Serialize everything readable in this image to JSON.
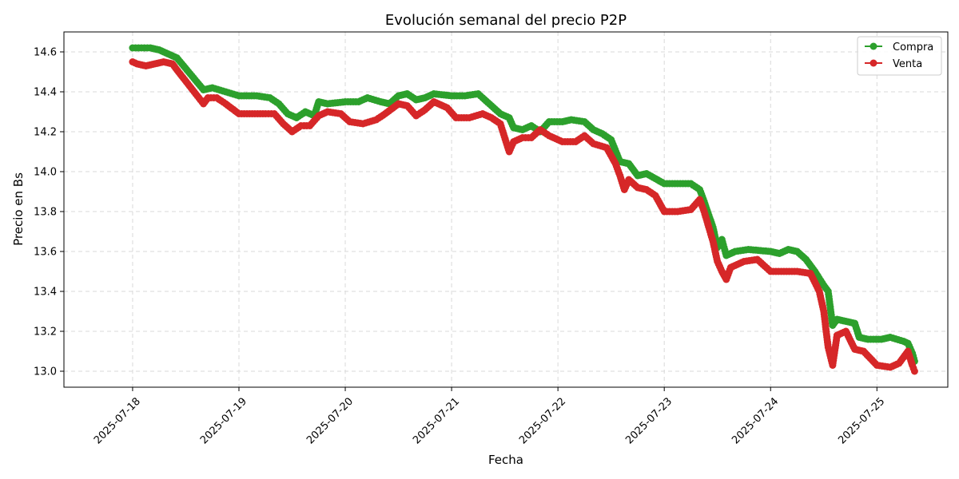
{
  "chart_data": {
    "type": "line",
    "title": "Evolución semanal del precio P2P",
    "xlabel": "Fecha",
    "ylabel": "Precio en Bs",
    "x_ticks": [
      "2025-07-18",
      "2025-07-19",
      "2025-07-20",
      "2025-07-21",
      "2025-07-22",
      "2025-07-23",
      "2025-07-24",
      "2025-07-25"
    ],
    "y_ticks": [
      "13.0",
      "13.2",
      "13.4",
      "13.6",
      "13.8",
      "14.0",
      "14.2",
      "14.4",
      "14.6"
    ],
    "xlim": [
      "2025-07-17T08:30",
      "2025-07-25T16:00"
    ],
    "ylim": [
      12.92,
      14.7
    ],
    "grid": true,
    "legend_position": "top-right",
    "colors": {
      "Compra": "#2ca02c",
      "Venta": "#d62728"
    },
    "series": [
      {
        "name": "Compra",
        "points": [
          [
            "2025-07-18T00:00",
            14.62
          ],
          [
            "2025-07-18T02:00",
            14.62
          ],
          [
            "2025-07-18T04:00",
            14.62
          ],
          [
            "2025-07-18T06:00",
            14.61
          ],
          [
            "2025-07-18T08:00",
            14.59
          ],
          [
            "2025-07-18T10:00",
            14.57
          ],
          [
            "2025-07-18T16:00",
            14.41
          ],
          [
            "2025-07-18T18:00",
            14.42
          ],
          [
            "2025-07-18T21:00",
            14.4
          ],
          [
            "2025-07-19T00:00",
            14.38
          ],
          [
            "2025-07-19T04:00",
            14.38
          ],
          [
            "2025-07-19T07:00",
            14.37
          ],
          [
            "2025-07-19T09:00",
            14.34
          ],
          [
            "2025-07-19T11:00",
            14.29
          ],
          [
            "2025-07-19T13:00",
            14.27
          ],
          [
            "2025-07-19T15:00",
            14.3
          ],
          [
            "2025-07-19T17:00",
            14.28
          ],
          [
            "2025-07-19T18:00",
            14.35
          ],
          [
            "2025-07-19T20:00",
            14.34
          ],
          [
            "2025-07-20T00:00",
            14.35
          ],
          [
            "2025-07-20T03:00",
            14.35
          ],
          [
            "2025-07-20T05:00",
            14.37
          ],
          [
            "2025-07-20T08:00",
            14.35
          ],
          [
            "2025-07-20T10:00",
            14.34
          ],
          [
            "2025-07-20T12:00",
            14.38
          ],
          [
            "2025-07-20T14:00",
            14.39
          ],
          [
            "2025-07-20T16:00",
            14.36
          ],
          [
            "2025-07-20T18:00",
            14.37
          ],
          [
            "2025-07-20T20:00",
            14.39
          ],
          [
            "2025-07-21T00:00",
            14.38
          ],
          [
            "2025-07-21T03:00",
            14.38
          ],
          [
            "2025-07-21T06:00",
            14.39
          ],
          [
            "2025-07-21T07:00",
            14.37
          ],
          [
            "2025-07-21T09:00",
            14.33
          ],
          [
            "2025-07-21T11:00",
            14.29
          ],
          [
            "2025-07-21T13:00",
            14.27
          ],
          [
            "2025-07-21T14:00",
            14.22
          ],
          [
            "2025-07-21T16:00",
            14.21
          ],
          [
            "2025-07-21T18:00",
            14.23
          ],
          [
            "2025-07-21T20:00",
            14.2
          ],
          [
            "2025-07-21T22:00",
            14.25
          ],
          [
            "2025-07-22T01:00",
            14.25
          ],
          [
            "2025-07-22T03:00",
            14.26
          ],
          [
            "2025-07-22T06:00",
            14.25
          ],
          [
            "2025-07-22T08:00",
            14.21
          ],
          [
            "2025-07-22T10:00",
            14.19
          ],
          [
            "2025-07-22T12:00",
            14.16
          ],
          [
            "2025-07-22T14:00",
            14.05
          ],
          [
            "2025-07-22T16:00",
            14.04
          ],
          [
            "2025-07-22T18:00",
            13.98
          ],
          [
            "2025-07-22T20:00",
            13.99
          ],
          [
            "2025-07-23T00:00",
            13.94
          ],
          [
            "2025-07-23T03:00",
            13.94
          ],
          [
            "2025-07-23T06:00",
            13.94
          ],
          [
            "2025-07-23T08:00",
            13.91
          ],
          [
            "2025-07-23T09:00",
            13.85
          ],
          [
            "2025-07-23T11:00",
            13.72
          ],
          [
            "2025-07-23T12:00",
            13.62
          ],
          [
            "2025-07-23T13:00",
            13.66
          ],
          [
            "2025-07-23T14:00",
            13.58
          ],
          [
            "2025-07-23T16:00",
            13.6
          ],
          [
            "2025-07-23T19:00",
            13.61
          ],
          [
            "2025-07-24T00:00",
            13.6
          ],
          [
            "2025-07-24T02:00",
            13.59
          ],
          [
            "2025-07-24T04:00",
            13.61
          ],
          [
            "2025-07-24T06:00",
            13.6
          ],
          [
            "2025-07-24T08:00",
            13.56
          ],
          [
            "2025-07-24T10:00",
            13.5
          ],
          [
            "2025-07-24T12:00",
            13.43
          ],
          [
            "2025-07-24T13:00",
            13.4
          ],
          [
            "2025-07-24T14:00",
            13.23
          ],
          [
            "2025-07-24T15:00",
            13.26
          ],
          [
            "2025-07-24T17:00",
            13.25
          ],
          [
            "2025-07-24T19:00",
            13.24
          ],
          [
            "2025-07-24T20:00",
            13.17
          ],
          [
            "2025-07-24T22:00",
            13.16
          ],
          [
            "2025-07-25T01:00",
            13.16
          ],
          [
            "2025-07-25T03:00",
            13.17
          ],
          [
            "2025-07-25T06:00",
            13.15
          ],
          [
            "2025-07-25T07:00",
            13.14
          ],
          [
            "2025-07-25T08:00",
            13.09
          ],
          [
            "2025-07-25T08:30",
            13.05
          ]
        ]
      },
      {
        "name": "Venta",
        "points": [
          [
            "2025-07-18T00:00",
            14.55
          ],
          [
            "2025-07-18T01:00",
            14.54
          ],
          [
            "2025-07-18T03:00",
            14.53
          ],
          [
            "2025-07-18T05:00",
            14.54
          ],
          [
            "2025-07-18T07:00",
            14.55
          ],
          [
            "2025-07-18T09:00",
            14.54
          ],
          [
            "2025-07-18T10:00",
            14.51
          ],
          [
            "2025-07-18T16:00",
            14.34
          ],
          [
            "2025-07-18T17:00",
            14.37
          ],
          [
            "2025-07-18T19:00",
            14.37
          ],
          [
            "2025-07-18T21:00",
            14.34
          ],
          [
            "2025-07-19T00:00",
            14.29
          ],
          [
            "2025-07-19T03:00",
            14.29
          ],
          [
            "2025-07-19T06:00",
            14.29
          ],
          [
            "2025-07-19T08:00",
            14.29
          ],
          [
            "2025-07-19T10:00",
            14.24
          ],
          [
            "2025-07-19T12:00",
            14.2
          ],
          [
            "2025-07-19T14:00",
            14.23
          ],
          [
            "2025-07-19T16:00",
            14.23
          ],
          [
            "2025-07-19T18:00",
            14.28
          ],
          [
            "2025-07-19T20:00",
            14.3
          ],
          [
            "2025-07-19T23:00",
            14.29
          ],
          [
            "2025-07-20T01:00",
            14.25
          ],
          [
            "2025-07-20T04:00",
            14.24
          ],
          [
            "2025-07-20T07:00",
            14.26
          ],
          [
            "2025-07-20T09:00",
            14.29
          ],
          [
            "2025-07-20T12:00",
            14.34
          ],
          [
            "2025-07-20T14:00",
            14.33
          ],
          [
            "2025-07-20T16:00",
            14.28
          ],
          [
            "2025-07-20T18:00",
            14.31
          ],
          [
            "2025-07-20T20:00",
            14.35
          ],
          [
            "2025-07-20T23:00",
            14.32
          ],
          [
            "2025-07-21T01:00",
            14.27
          ],
          [
            "2025-07-21T04:00",
            14.27
          ],
          [
            "2025-07-21T07:00",
            14.29
          ],
          [
            "2025-07-21T09:00",
            14.27
          ],
          [
            "2025-07-21T11:00",
            14.24
          ],
          [
            "2025-07-21T13:00",
            14.1
          ],
          [
            "2025-07-21T14:00",
            14.15
          ],
          [
            "2025-07-21T16:00",
            14.17
          ],
          [
            "2025-07-21T18:00",
            14.17
          ],
          [
            "2025-07-21T20:00",
            14.21
          ],
          [
            "2025-07-21T22:00",
            14.18
          ],
          [
            "2025-07-22T01:00",
            14.15
          ],
          [
            "2025-07-22T04:00",
            14.15
          ],
          [
            "2025-07-22T06:00",
            14.18
          ],
          [
            "2025-07-22T08:00",
            14.14
          ],
          [
            "2025-07-22T11:00",
            14.12
          ],
          [
            "2025-07-22T13:00",
            14.04
          ],
          [
            "2025-07-22T14:00",
            13.98
          ],
          [
            "2025-07-22T15:00",
            13.91
          ],
          [
            "2025-07-22T16:00",
            13.96
          ],
          [
            "2025-07-22T18:00",
            13.92
          ],
          [
            "2025-07-22T20:00",
            13.91
          ],
          [
            "2025-07-22T22:00",
            13.88
          ],
          [
            "2025-07-23T00:00",
            13.8
          ],
          [
            "2025-07-23T03:00",
            13.8
          ],
          [
            "2025-07-23T06:00",
            13.81
          ],
          [
            "2025-07-23T08:00",
            13.86
          ],
          [
            "2025-07-23T09:00",
            13.8
          ],
          [
            "2025-07-23T11:00",
            13.65
          ],
          [
            "2025-07-23T12:00",
            13.55
          ],
          [
            "2025-07-23T13:00",
            13.5
          ],
          [
            "2025-07-23T14:00",
            13.46
          ],
          [
            "2025-07-23T15:00",
            13.52
          ],
          [
            "2025-07-23T18:00",
            13.55
          ],
          [
            "2025-07-23T21:00",
            13.56
          ],
          [
            "2025-07-24T00:00",
            13.5
          ],
          [
            "2025-07-24T03:00",
            13.5
          ],
          [
            "2025-07-24T06:00",
            13.5
          ],
          [
            "2025-07-24T09:00",
            13.49
          ],
          [
            "2025-07-24T11:00",
            13.4
          ],
          [
            "2025-07-24T12:00",
            13.3
          ],
          [
            "2025-07-24T13:00",
            13.12
          ],
          [
            "2025-07-24T14:00",
            13.03
          ],
          [
            "2025-07-24T15:00",
            13.18
          ],
          [
            "2025-07-24T17:00",
            13.2
          ],
          [
            "2025-07-24T19:00",
            13.11
          ],
          [
            "2025-07-24T21:00",
            13.1
          ],
          [
            "2025-07-25T00:00",
            13.03
          ],
          [
            "2025-07-25T03:00",
            13.02
          ],
          [
            "2025-07-25T05:00",
            13.04
          ],
          [
            "2025-07-25T07:00",
            13.1
          ],
          [
            "2025-07-25T08:00",
            13.03
          ],
          [
            "2025-07-25T08:30",
            13.0
          ]
        ]
      }
    ]
  }
}
